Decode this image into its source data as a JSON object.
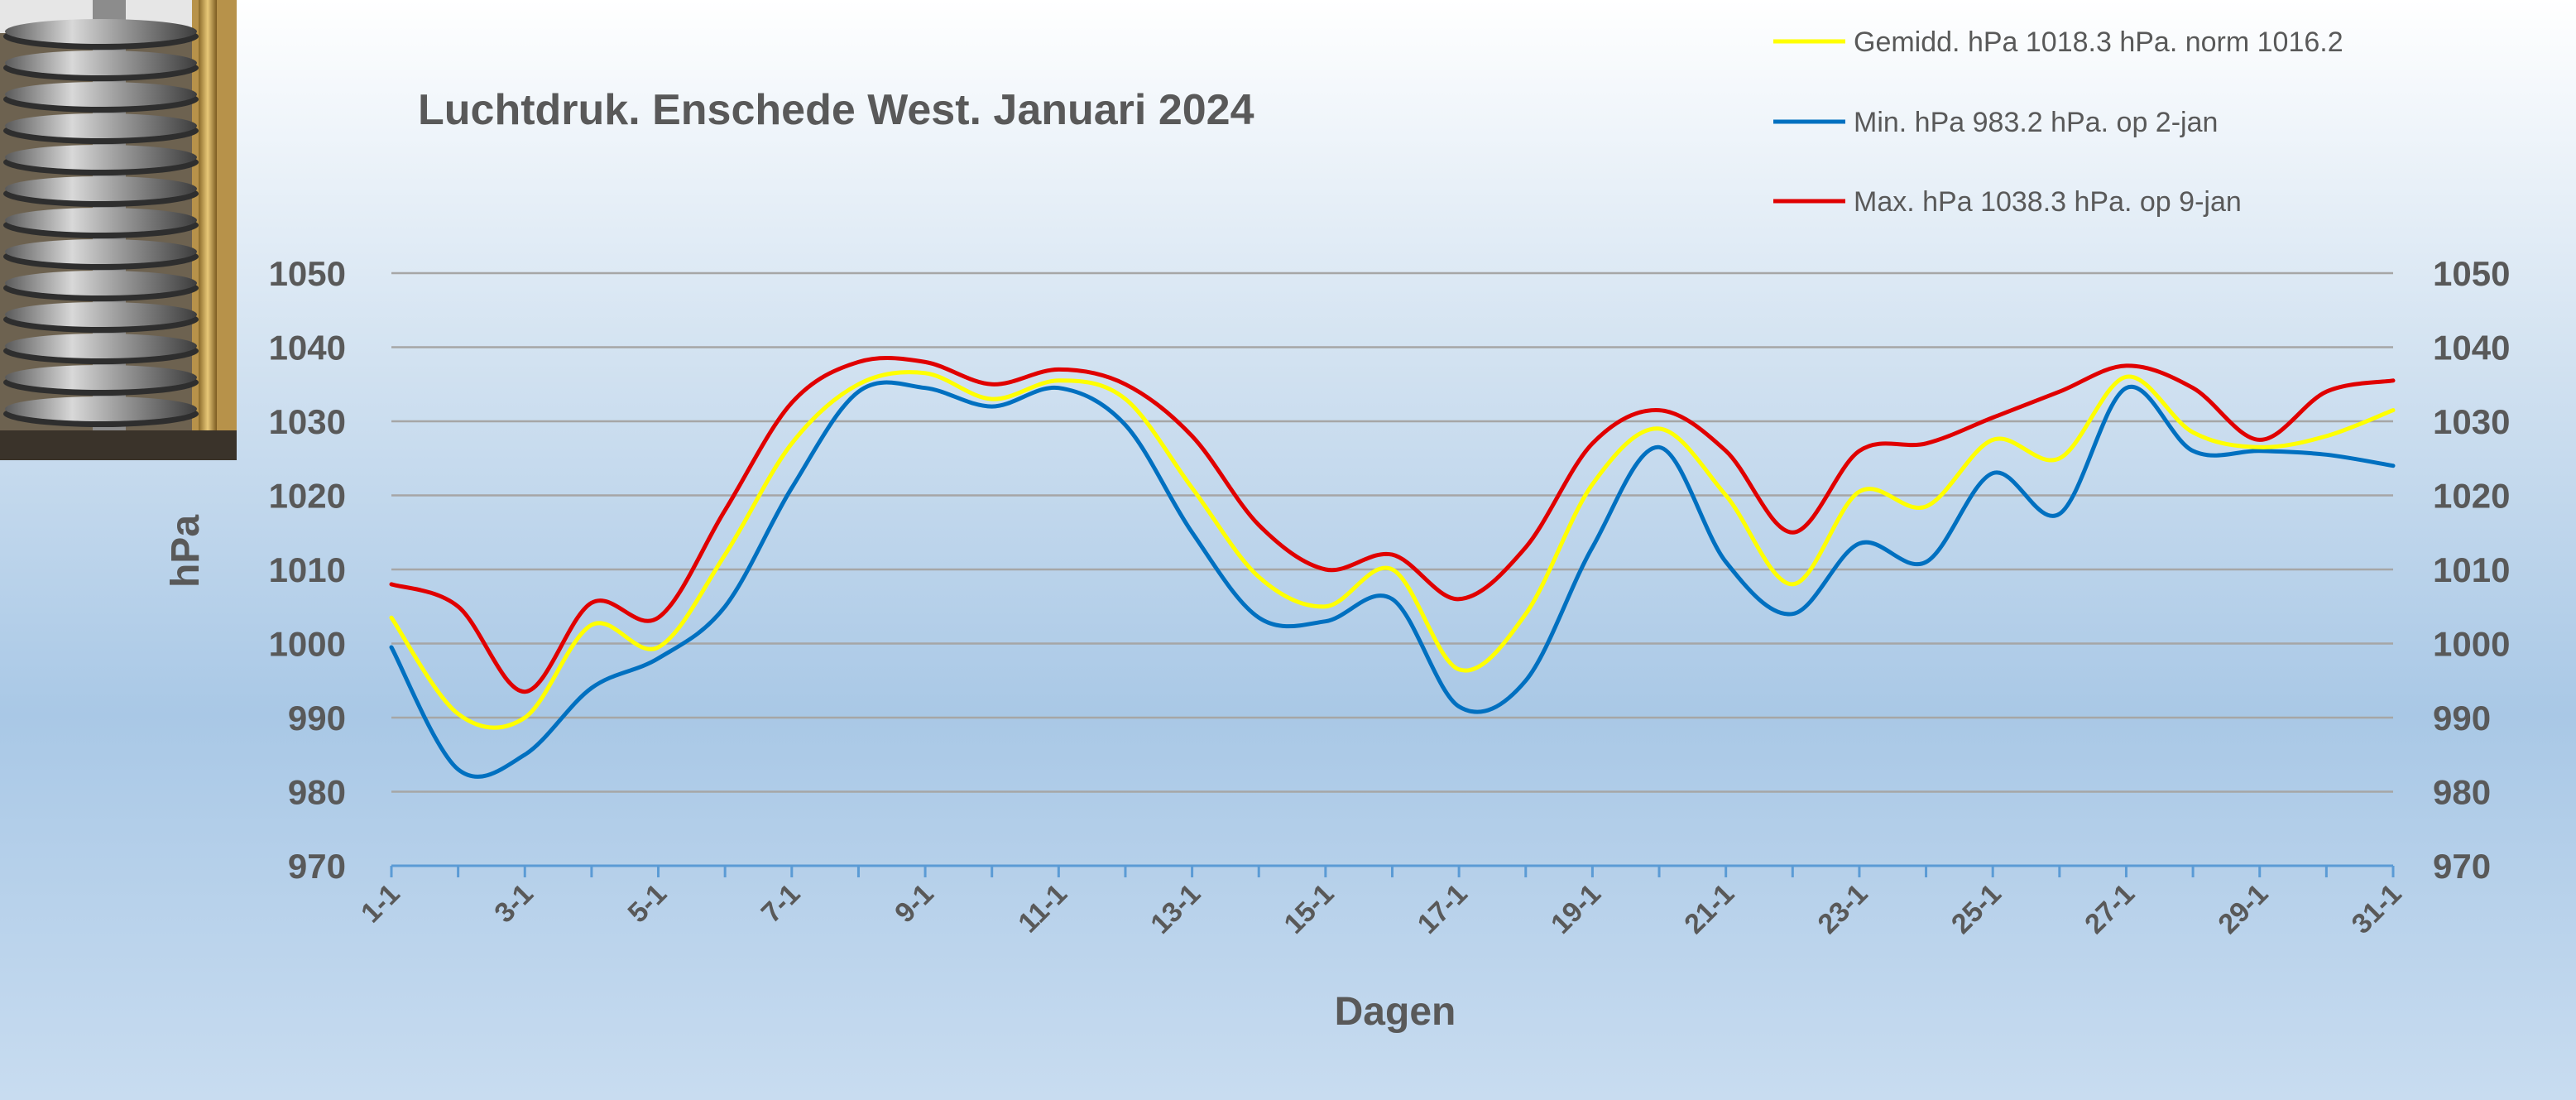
{
  "colors": {
    "avg": "#ffff00",
    "min": "#0070c0",
    "max": "#e00000",
    "grid": "#a6a6a6",
    "text": "#595959"
  },
  "photo": {
    "icon": "barograph-photo"
  },
  "chart_data": {
    "type": "line",
    "title": "Luchtdruk. Enschede West. Januari 2024",
    "xlabel": "Dagen",
    "ylabel": "hPa",
    "ylim": [
      970,
      1050
    ],
    "yticks": [
      "1050",
      "1040",
      "1030",
      "1020",
      "1010",
      "1000",
      "990",
      "980",
      "970"
    ],
    "grid": true,
    "legend_position": "top-right",
    "x": [
      "1-1",
      "2-1",
      "3-1",
      "4-1",
      "5-1",
      "6-1",
      "7-1",
      "8-1",
      "9-1",
      "10-1",
      "11-1",
      "12-1",
      "13-1",
      "14-1",
      "15-1",
      "16-1",
      "17-1",
      "18-1",
      "19-1",
      "20-1",
      "21-1",
      "22-1",
      "23-1",
      "24-1",
      "25-1",
      "26-1",
      "27-1",
      "28-1",
      "29-1",
      "30-1",
      "31-1"
    ],
    "xtick_labels": [
      "1-1",
      "3-1",
      "5-1",
      "7-1",
      "9-1",
      "11-1",
      "13-1",
      "15-1",
      "17-1",
      "19-1",
      "21-1",
      "23-1",
      "25-1",
      "27-1",
      "29-1",
      "31-1"
    ],
    "series": [
      {
        "name": "Gemidd. hPa 1018.3 hPa.  norm 1016.2",
        "color": "#ffff00",
        "values": [
          1003.5,
          990.5,
          990,
          1002.5,
          999.5,
          1012,
          1027,
          1035,
          1036.5,
          1033,
          1035.5,
          1033,
          1021,
          1009,
          1005,
          1010,
          996.5,
          1004,
          1021.5,
          1029,
          1020,
          1008,
          1020.5,
          1018.5,
          1027.5,
          1025,
          1036,
          1028.5,
          1026.5,
          1028,
          1031.5
        ]
      },
      {
        "name": "Min. hPa 983.2 hPa. op 2-jan",
        "color": "#0070c0",
        "values": [
          999.5,
          983,
          985,
          994,
          998,
          1005,
          1021,
          1034,
          1034.5,
          1032,
          1034.5,
          1029.5,
          1015,
          1003.5,
          1003,
          1006,
          991.5,
          995,
          1013,
          1026.5,
          1011,
          1004,
          1013.5,
          1011,
          1023,
          1017.5,
          1034.5,
          1026,
          1026,
          1025.5,
          1024
        ]
      },
      {
        "name": "Max. hPa 1038.3 hPa.  op 9-jan",
        "color": "#e00000",
        "values": [
          1008,
          1005,
          993.5,
          1005.5,
          1003.5,
          1018,
          1032.5,
          1038,
          1038,
          1035,
          1037,
          1035,
          1028,
          1016,
          1010,
          1012,
          1006,
          1013,
          1027,
          1031.5,
          1026,
          1015,
          1026,
          1027,
          1030.5,
          1034,
          1037.5,
          1034.5,
          1027.5,
          1034,
          1035.5
        ]
      }
    ]
  }
}
